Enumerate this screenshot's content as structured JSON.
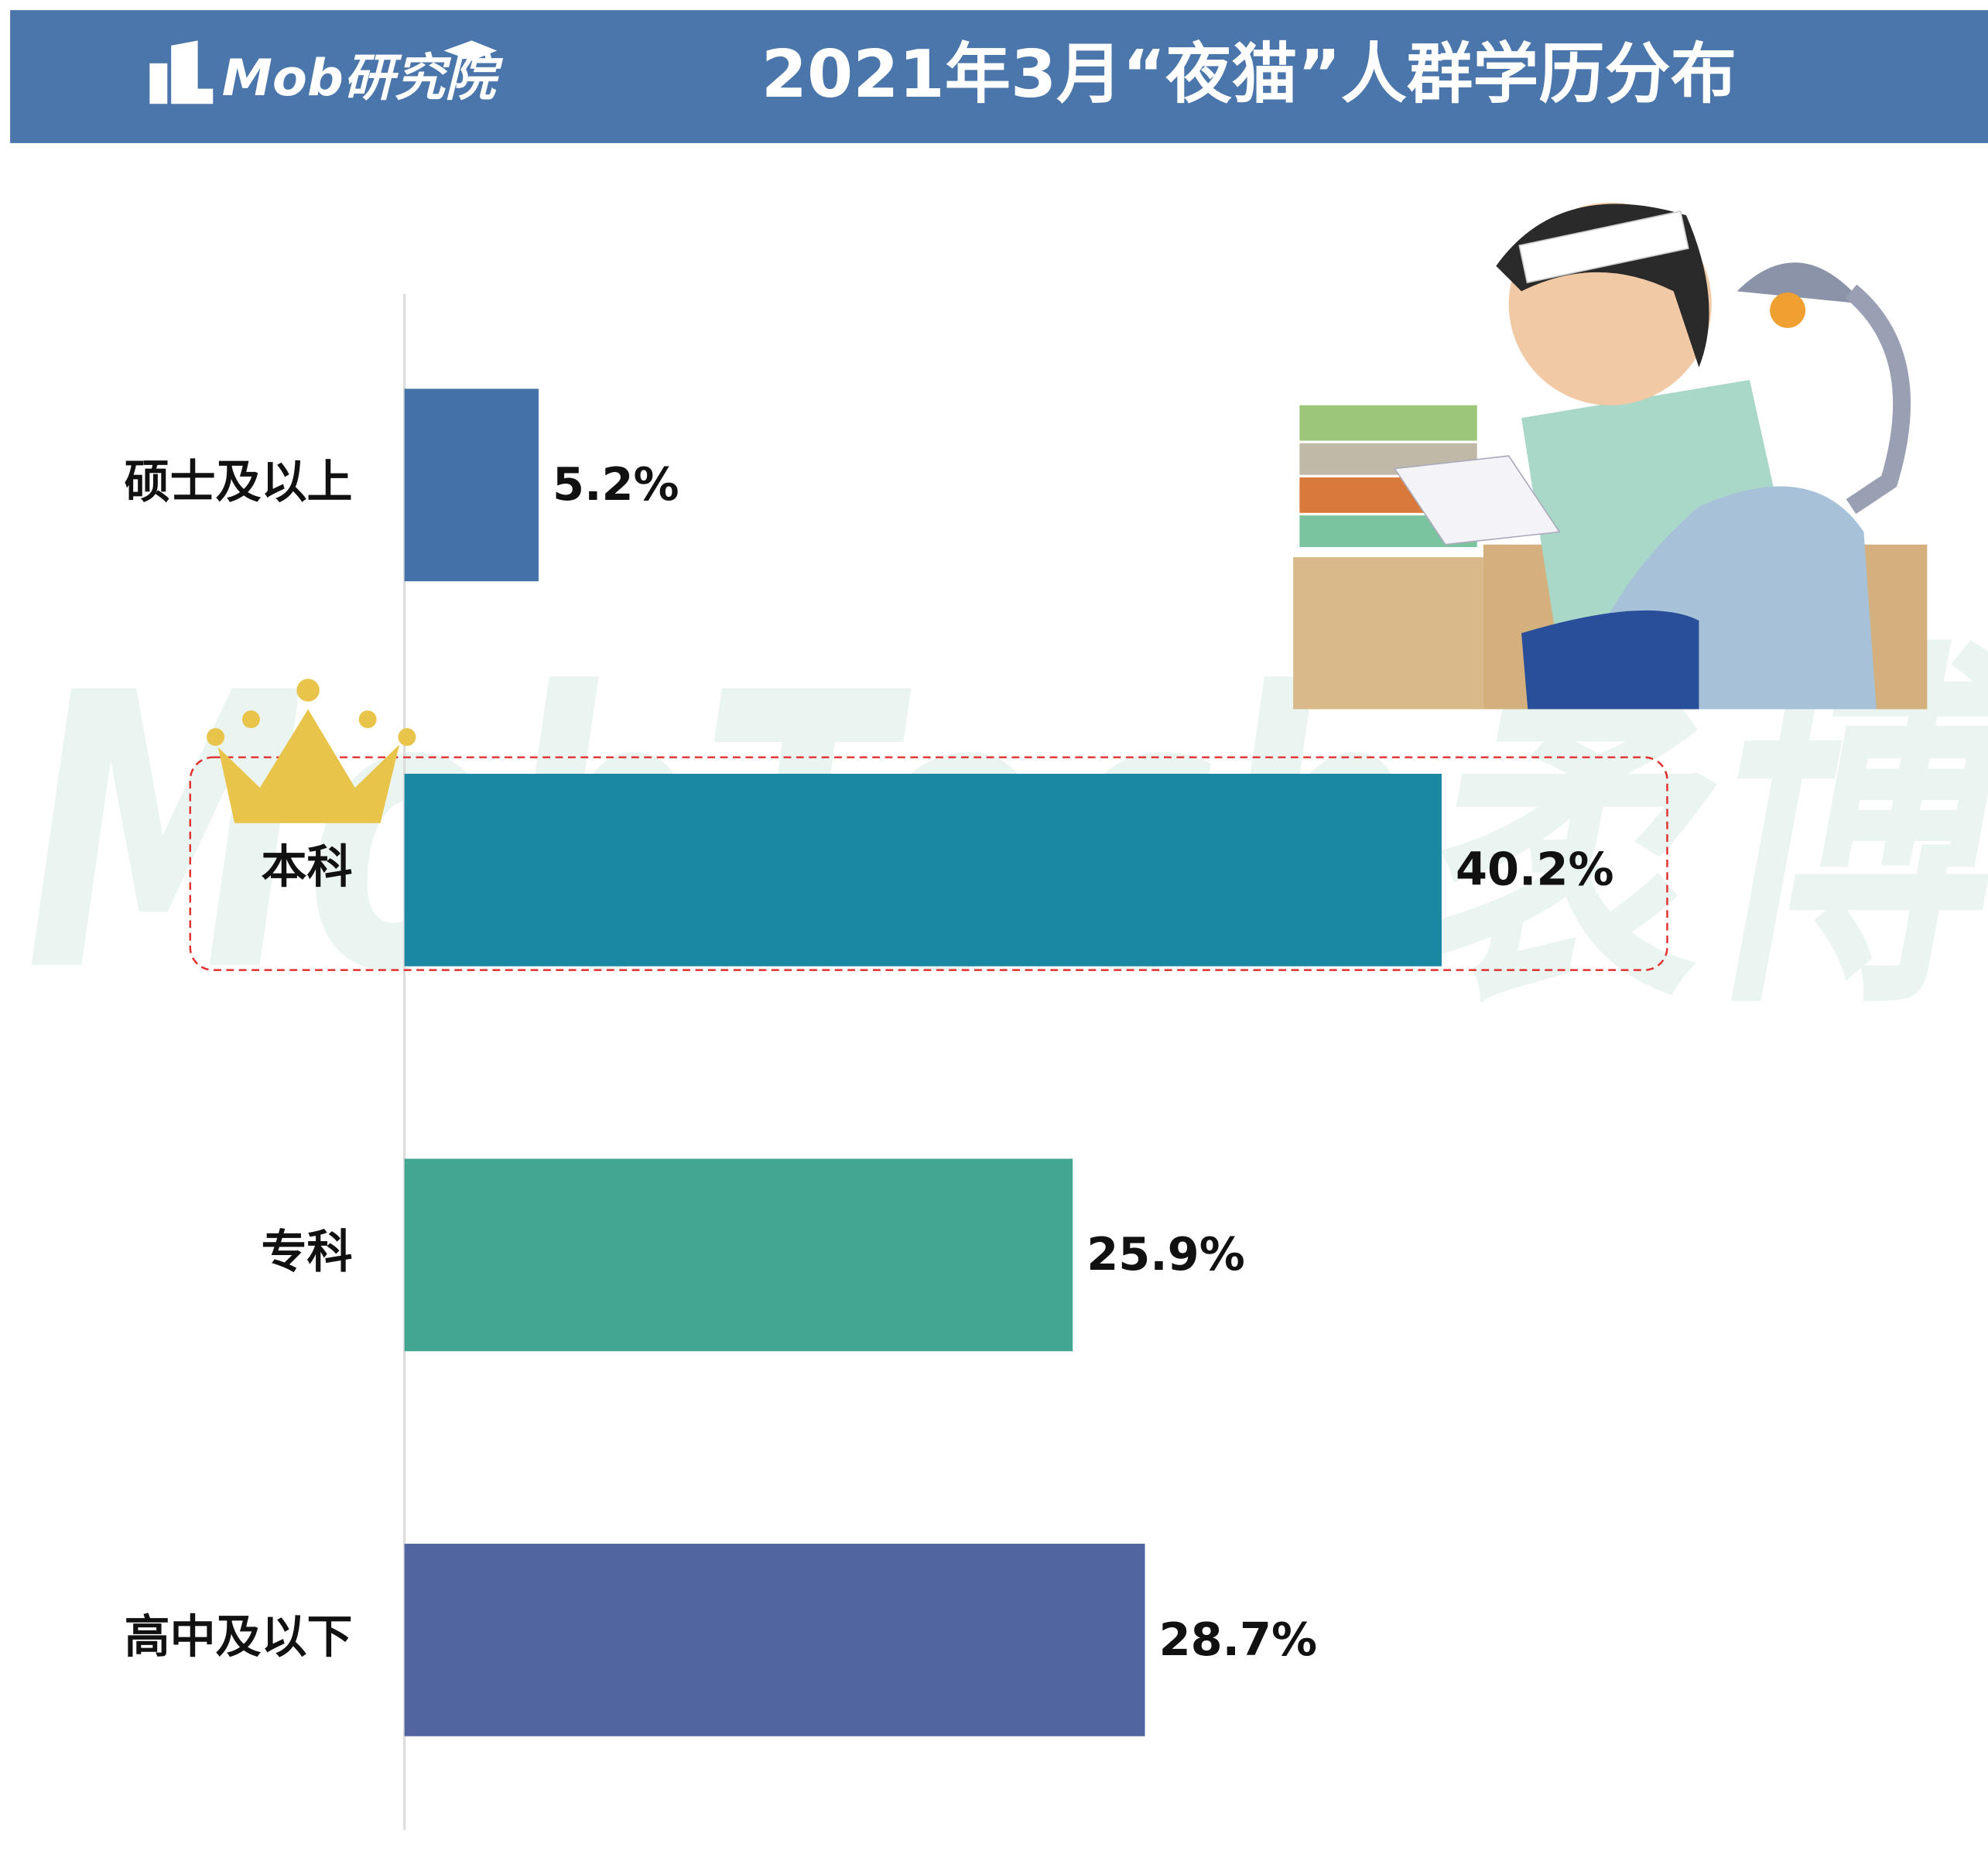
{
  "chart_data": {
    "type": "bar",
    "orientation": "horizontal",
    "brand": "Mob研究院",
    "title": "2021年3月“夜猫”人群学历分布",
    "watermark": "MobTech袤博",
    "categories": [
      "硕士及以上",
      "本科",
      "专科",
      "高中及以下"
    ],
    "values": [
      5.2,
      40.2,
      25.9,
      28.7
    ],
    "value_labels": [
      "5.2%",
      "40.2%",
      "25.9%",
      "28.7%"
    ],
    "colors": [
      "#4472a8",
      "#1a87a3",
      "#42a693",
      "#5166a0"
    ],
    "xlim": [
      0,
      60
    ],
    "highlight": "本科"
  }
}
